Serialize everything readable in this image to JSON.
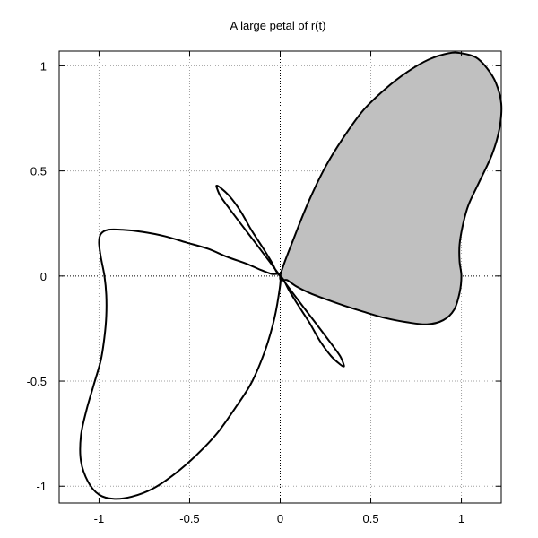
{
  "chart_data": {
    "type": "line",
    "title": "A large petal of r(t)",
    "xlabel": "",
    "ylabel": "",
    "xlim": [
      -1.22,
      1.22
    ],
    "ylim": [
      -1.08,
      1.07
    ],
    "xticks": [
      -1,
      -0.5,
      0,
      0.5,
      1
    ],
    "xtick_labels": [
      "-1",
      "-0.5",
      "0",
      "0.5",
      "1"
    ],
    "yticks": [
      -1,
      -0.5,
      0,
      0.5,
      1
    ],
    "ytick_labels": [
      "-1",
      "-0.5",
      "0",
      "0.5",
      "1"
    ],
    "grid": true,
    "zero_axes": true,
    "colors": {
      "curve": "#000000",
      "fill": "#c0c0c0",
      "grid": "#a0a0a0"
    },
    "series": [
      {
        "kind": "filled-petal",
        "x": [
          0,
          0.08,
          0.16,
          0.25,
          0.35,
          0.46,
          0.58,
          0.7,
          0.82,
          0.93,
          1.0,
          1.08,
          1.14,
          1.19,
          1.22,
          1.21,
          1.17,
          1.1,
          1.04,
          1.01,
          0.99,
          0.99,
          1.0,
          0.99,
          0.96,
          0.9,
          0.81,
          0.7,
          0.58,
          0.46,
          0.35,
          0.25,
          0.16,
          0.09,
          0.04,
          0
        ],
        "y": [
          0,
          0.19,
          0.36,
          0.52,
          0.66,
          0.79,
          0.89,
          0.97,
          1.03,
          1.06,
          1.06,
          1.04,
          0.99,
          0.92,
          0.82,
          0.7,
          0.58,
          0.45,
          0.34,
          0.25,
          0.15,
          0.07,
          0.0,
          -0.08,
          -0.16,
          -0.21,
          -0.23,
          -0.22,
          -0.2,
          -0.17,
          -0.14,
          -0.11,
          -0.08,
          -0.05,
          -0.02,
          0
        ]
      },
      {
        "kind": "large-petal-lower-left",
        "x": [
          0,
          -0.01,
          -0.04,
          -0.09,
          -0.16,
          -0.25,
          -0.35,
          -0.46,
          -0.58,
          -0.7,
          -0.82,
          -0.92,
          -1.0,
          -1.06,
          -1.1,
          -1.1,
          -1.07,
          -1.03,
          -0.99,
          -0.97,
          -0.96,
          -0.96,
          -0.97,
          -0.99,
          -1.0,
          -0.99,
          -0.95,
          -0.87,
          -0.76,
          -0.64,
          -0.52,
          -0.4,
          -0.29,
          -0.19,
          -0.11,
          -0.05,
          0
        ],
        "y": [
          0,
          -0.1,
          -0.23,
          -0.37,
          -0.51,
          -0.63,
          -0.75,
          -0.85,
          -0.94,
          -1.01,
          -1.05,
          -1.06,
          -1.04,
          -0.98,
          -0.88,
          -0.76,
          -0.64,
          -0.52,
          -0.4,
          -0.29,
          -0.19,
          -0.09,
          0.0,
          0.09,
          0.16,
          0.2,
          0.22,
          0.22,
          0.21,
          0.19,
          0.16,
          0.13,
          0.09,
          0.06,
          0.03,
          0.01,
          0
        ]
      },
      {
        "kind": "small-petal-upper-left",
        "x": [
          0,
          -0.06,
          -0.13,
          -0.21,
          -0.28,
          -0.33,
          -0.35,
          -0.35,
          -0.33,
          -0.28,
          -0.22,
          -0.16,
          -0.1,
          -0.05,
          -0.02,
          0
        ],
        "y": [
          0,
          0.07,
          0.15,
          0.24,
          0.32,
          0.38,
          0.42,
          0.43,
          0.42,
          0.38,
          0.31,
          0.22,
          0.14,
          0.07,
          0.02,
          0
        ]
      },
      {
        "kind": "small-petal-lower-right",
        "x": [
          0,
          0.06,
          0.13,
          0.21,
          0.28,
          0.33,
          0.35,
          0.35,
          0.33,
          0.28,
          0.22,
          0.16,
          0.1,
          0.05,
          0.02,
          0
        ],
        "y": [
          0,
          -0.07,
          -0.15,
          -0.24,
          -0.32,
          -0.38,
          -0.42,
          -0.43,
          -0.42,
          -0.38,
          -0.31,
          -0.22,
          -0.14,
          -0.07,
          -0.02,
          0
        ]
      }
    ]
  }
}
